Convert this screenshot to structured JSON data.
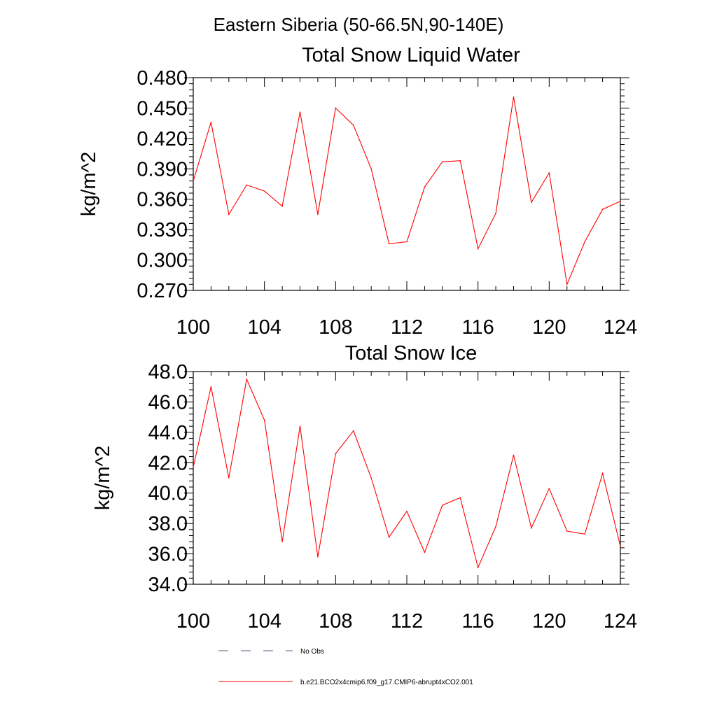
{
  "suptitle": "Eastern Siberia (50-66.5N,90-140E)",
  "chart_data": [
    {
      "type": "line",
      "title": "Total Snow Liquid Water",
      "xlabel": "",
      "ylabel": "kg/m^2",
      "xlim": [
        100,
        124
      ],
      "ylim": [
        0.27,
        0.48
      ],
      "xticks": [
        100,
        104,
        108,
        112,
        116,
        120,
        124
      ],
      "yticks": [
        0.27,
        0.3,
        0.33,
        0.36,
        0.39,
        0.42,
        0.45,
        0.48
      ],
      "ytick_labels": [
        "0.270",
        "0.300",
        "0.330",
        "0.360",
        "0.390",
        "0.420",
        "0.450",
        "0.480"
      ],
      "series": [
        {
          "name": "b.e21.BCO2x4cmip6.f09_g17.CMIP6-abrupt4xCO2.001",
          "color": "#ff0000",
          "x": [
            100,
            101,
            102,
            103,
            104,
            105,
            106,
            107,
            108,
            109,
            110,
            111,
            112,
            113,
            114,
            115,
            116,
            117,
            118,
            119,
            120,
            121,
            122,
            123,
            124
          ],
          "values": [
            0.378,
            0.436,
            0.345,
            0.374,
            0.368,
            0.353,
            0.446,
            0.345,
            0.45,
            0.433,
            0.39,
            0.316,
            0.318,
            0.372,
            0.397,
            0.398,
            0.311,
            0.346,
            0.461,
            0.357,
            0.386,
            0.276,
            0.318,
            0.35,
            0.358
          ]
        }
      ]
    },
    {
      "type": "line",
      "title": "Total Snow Ice",
      "xlabel": "",
      "ylabel": "kg/m^2",
      "xlim": [
        100,
        124
      ],
      "ylim": [
        34.0,
        48.0
      ],
      "xticks": [
        100,
        104,
        108,
        112,
        116,
        120,
        124
      ],
      "yticks": [
        34,
        36,
        38,
        40,
        42,
        44,
        46,
        48
      ],
      "ytick_labels": [
        "34.0",
        "36.0",
        "38.0",
        "40.0",
        "42.0",
        "44.0",
        "46.0",
        "48.0"
      ],
      "series": [
        {
          "name": "b.e21.BCO2x4cmip6.f09_g17.CMIP6-abrupt4xCO2.001",
          "color": "#ff0000",
          "x": [
            100,
            101,
            102,
            103,
            104,
            105,
            106,
            107,
            108,
            109,
            110,
            111,
            112,
            113,
            114,
            115,
            116,
            117,
            118,
            119,
            120,
            121,
            122,
            123,
            124
          ],
          "values": [
            41.7,
            47.0,
            41.0,
            47.5,
            44.8,
            36.8,
            44.4,
            35.8,
            42.6,
            44.1,
            41.0,
            37.1,
            38.8,
            36.1,
            39.2,
            39.7,
            35.1,
            37.8,
            42.5,
            37.7,
            40.3,
            37.5,
            37.3,
            41.3,
            36.5
          ]
        }
      ]
    }
  ],
  "legend": [
    {
      "label": "No Obs",
      "style": "dashed",
      "color": "#5a5a8a"
    },
    {
      "label": "b.e21.BCO2x4cmip6.f09_g17.CMIP6-abrupt4xCO2.001",
      "style": "solid",
      "color": "#ff0000"
    }
  ]
}
